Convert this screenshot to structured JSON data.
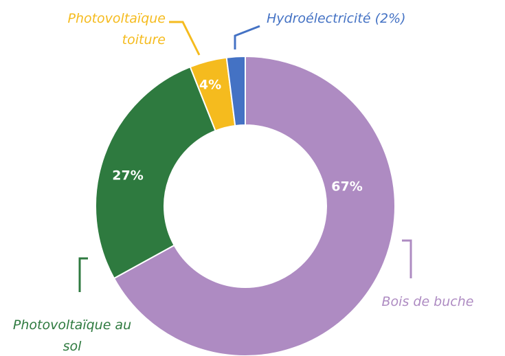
{
  "chart_data": {
    "type": "donut",
    "categories": [
      "Bois de buche",
      "Photovoltaïque au sol",
      "Photovoltaïque toiture",
      "Hydroélectricité (2%)"
    ],
    "values": [
      67,
      27,
      4,
      2
    ],
    "value_labels": [
      "67%",
      "27%",
      "4%",
      null
    ],
    "colors": [
      "#ae8bc2",
      "#2e7a3f",
      "#f5bb1e",
      "#4472c4"
    ]
  }
}
